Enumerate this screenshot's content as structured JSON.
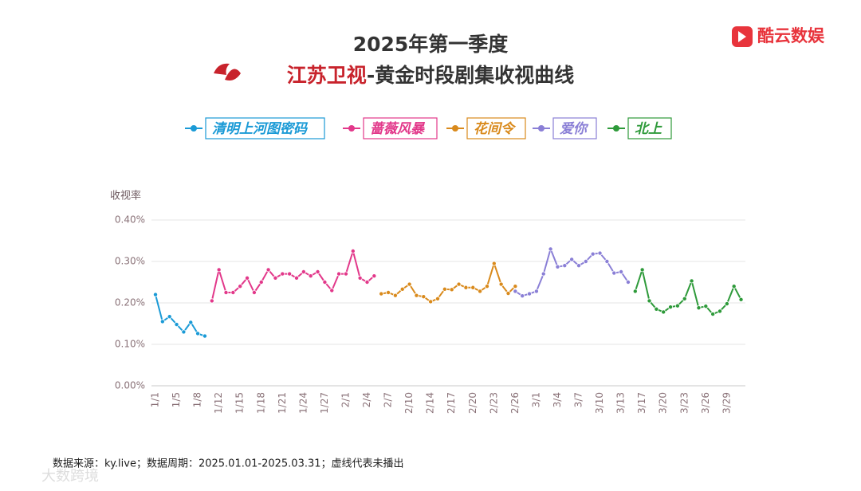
{
  "brand": "酷云数娱",
  "watermark": "大数跨境",
  "chart_data": {
    "type": "line",
    "title": "2025年第一季度",
    "subtitle_channel": "江苏卫视",
    "subtitle": "-黄金时段剧集收视曲线",
    "ylabel": "收视率",
    "source": "数据来源：ky.live；数据周期：2025.01.01-2025.03.31；虚线代表未播出",
    "categories": [
      "1/1",
      null,
      null,
      "1/5",
      null,
      null,
      "1/8",
      null,
      null,
      "1/12",
      null,
      null,
      "1/15",
      null,
      null,
      "1/18",
      null,
      null,
      "1/21",
      null,
      null,
      "1/24",
      null,
      null,
      "1/27",
      null,
      null,
      "2/1",
      null,
      null,
      "2/4",
      null,
      null,
      "2/7",
      null,
      null,
      "2/10",
      null,
      null,
      "2/14",
      null,
      null,
      "2/17",
      null,
      null,
      "2/20",
      null,
      null,
      "2/23",
      null,
      null,
      "2/26",
      null,
      null,
      "3/1",
      null,
      null,
      "3/4",
      null,
      null,
      "3/7",
      null,
      null,
      "3/10",
      null,
      null,
      "3/13",
      null,
      null,
      "3/17",
      null,
      null,
      "3/20",
      null,
      null,
      "3/23",
      null,
      null,
      "3/26",
      null,
      null,
      "3/29",
      null,
      null
    ],
    "ylim": [
      0,
      0.4
    ],
    "yticks": [
      {
        "value": 0,
        "label": "0.00%"
      },
      {
        "value": 0.1,
        "label": "0.10%"
      },
      {
        "value": 0.2,
        "label": "0.20%"
      },
      {
        "value": 0.3,
        "label": "0.30%"
      },
      {
        "value": 0.4,
        "label": "0.40%"
      }
    ],
    "grid": true,
    "legend": "top",
    "series": [
      {
        "name": "清明上河图密码",
        "color": "#1a9ad6",
        "values": [
          0.22,
          0.155,
          0.167,
          0.148,
          0.13,
          0.153,
          0.126,
          0.12,
          null,
          null,
          null,
          null,
          null,
          null,
          null,
          null,
          null,
          null,
          null,
          null,
          null,
          null,
          null,
          null,
          null,
          null,
          null,
          null,
          null,
          null,
          null,
          null,
          null,
          null,
          null,
          null,
          null,
          null,
          null,
          null,
          null,
          null,
          null,
          null,
          null,
          null,
          null,
          null,
          null,
          null,
          null,
          null,
          null,
          null,
          null,
          null,
          null,
          null,
          null,
          null,
          null,
          null,
          null,
          null,
          null,
          null,
          null,
          null,
          null,
          null,
          null,
          null,
          null,
          null,
          null,
          null,
          null,
          null,
          null,
          null,
          null,
          null,
          null,
          null
        ]
      },
      {
        "name": "蔷薇风暴",
        "color": "#e2388a",
        "values": [
          null,
          null,
          null,
          null,
          null,
          null,
          null,
          null,
          0.205,
          0.28,
          0.225,
          0.225,
          0.24,
          0.26,
          0.225,
          0.25,
          0.28,
          0.26,
          0.27,
          0.27,
          0.26,
          0.275,
          0.265,
          0.275,
          0.25,
          0.23,
          0.27,
          0.27,
          0.325,
          0.26,
          0.25,
          0.265,
          null,
          null,
          null,
          null,
          null,
          null,
          null,
          null,
          null,
          null,
          null,
          null,
          null,
          null,
          null,
          null,
          null,
          null,
          null,
          null,
          null,
          null,
          null,
          null,
          null,
          null,
          null,
          null,
          null,
          null,
          null,
          null,
          null,
          null,
          null,
          null,
          null,
          null,
          null,
          null,
          null,
          null,
          null,
          null,
          null,
          null,
          null,
          null,
          null,
          null,
          null,
          null
        ]
      },
      {
        "name": "花间令",
        "color": "#d98a1c",
        "values": [
          null,
          null,
          null,
          null,
          null,
          null,
          null,
          null,
          null,
          null,
          null,
          null,
          null,
          null,
          null,
          null,
          null,
          null,
          null,
          null,
          null,
          null,
          null,
          null,
          null,
          null,
          null,
          null,
          null,
          null,
          null,
          null,
          0.222,
          0.225,
          0.218,
          0.233,
          0.245,
          0.218,
          0.215,
          0.203,
          0.21,
          0.233,
          0.232,
          0.245,
          0.237,
          0.237,
          0.228,
          0.24,
          0.295,
          0.245,
          0.223,
          0.24,
          null,
          null,
          null,
          null,
          null,
          null,
          null,
          null,
          null,
          null,
          null,
          null,
          null,
          null,
          null,
          null,
          null,
          null,
          null,
          null,
          null,
          null,
          null,
          null,
          null,
          null,
          null,
          null,
          null,
          null,
          null,
          null
        ]
      },
      {
        "name": "爱你",
        "color": "#8a7fd6",
        "values": [
          null,
          null,
          null,
          null,
          null,
          null,
          null,
          null,
          null,
          null,
          null,
          null,
          null,
          null,
          null,
          null,
          null,
          null,
          null,
          null,
          null,
          null,
          null,
          null,
          null,
          null,
          null,
          null,
          null,
          null,
          null,
          null,
          null,
          null,
          null,
          null,
          null,
          null,
          null,
          null,
          null,
          null,
          null,
          null,
          null,
          null,
          null,
          null,
          null,
          null,
          null,
          0.228,
          0.217,
          0.222,
          0.228,
          0.27,
          0.33,
          0.287,
          0.29,
          0.305,
          0.29,
          0.3,
          0.318,
          0.32,
          0.3,
          0.272,
          0.275,
          0.25,
          null,
          null,
          null,
          null,
          null,
          null,
          null,
          null,
          null,
          null,
          null,
          null,
          null,
          null,
          null,
          null
        ]
      },
      {
        "name": "北上",
        "color": "#2e9a3a",
        "values": [
          null,
          null,
          null,
          null,
          null,
          null,
          null,
          null,
          null,
          null,
          null,
          null,
          null,
          null,
          null,
          null,
          null,
          null,
          null,
          null,
          null,
          null,
          null,
          null,
          null,
          null,
          null,
          null,
          null,
          null,
          null,
          null,
          null,
          null,
          null,
          null,
          null,
          null,
          null,
          null,
          null,
          null,
          null,
          null,
          null,
          null,
          null,
          null,
          null,
          null,
          null,
          null,
          null,
          null,
          null,
          null,
          null,
          null,
          null,
          null,
          null,
          null,
          null,
          null,
          null,
          null,
          null,
          null,
          0.228,
          0.28,
          0.205,
          0.185,
          0.178,
          0.19,
          0.193,
          0.21,
          0.253,
          0.188,
          0.192,
          0.173,
          0.18,
          0.198,
          0.24,
          0.208
        ]
      }
    ]
  }
}
